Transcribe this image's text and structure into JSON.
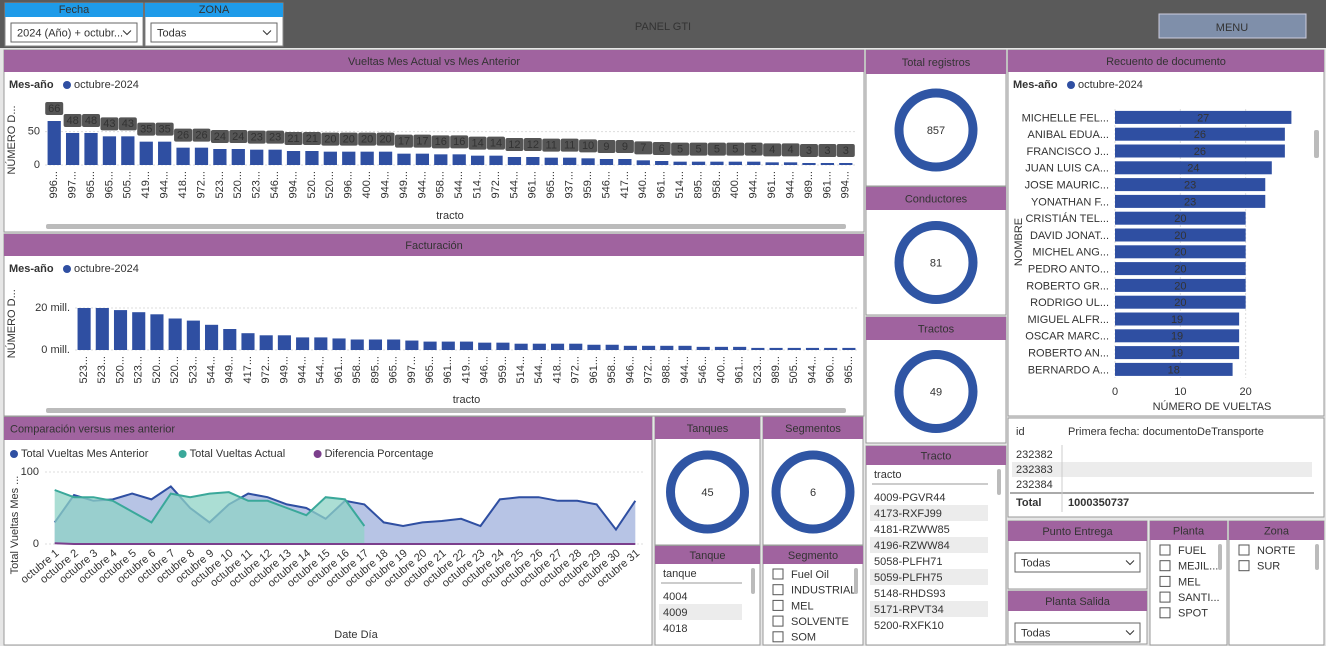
{
  "header": {
    "title": "PANEL GTI",
    "menu": "MENU"
  },
  "filters": {
    "fecha": {
      "label": "Fecha",
      "value": "2024 (Año) + octubr..."
    },
    "zona": {
      "label": "ZONA",
      "value": "Todas"
    }
  },
  "chart_data": [
    {
      "type": "bar",
      "title": "Vueltas Mes Actual vs Mes Anterior",
      "legend_title": "Mes-año",
      "y_label": "NÚMERO D...",
      "x_label": "tracto",
      "data_labels": true,
      "categories": [
        "996...",
        "997...",
        "965...",
        "965...",
        "505...",
        "419...",
        "944...",
        "418...",
        "972...",
        "523...",
        "520...",
        "523...",
        "546...",
        "994...",
        "520...",
        "520...",
        "996...",
        "400...",
        "944...",
        "949...",
        "944...",
        "958...",
        "544...",
        "514...",
        "972...",
        "544...",
        "961...",
        "965...",
        "937...",
        "959...",
        "546...",
        "417...",
        "940...",
        "961...",
        "514...",
        "895...",
        "958...",
        "400...",
        "944...",
        "961...",
        "944...",
        "989...",
        "961...",
        "994..."
      ],
      "series": [
        {
          "name": "octubre-2024",
          "color": "#2f4fa2",
          "values": [
            66,
            48,
            48,
            43,
            43,
            35,
            35,
            26,
            26,
            24,
            24,
            23,
            23,
            21,
            21,
            20,
            20,
            20,
            20,
            17,
            17,
            16,
            16,
            14,
            14,
            12,
            12,
            11,
            11,
            10,
            9,
            9,
            7,
            6,
            5,
            5,
            5,
            5,
            5,
            4,
            4,
            3,
            3,
            3
          ]
        }
      ],
      "ylim": [
        0,
        75
      ],
      "yticks": [
        0,
        50
      ]
    },
    {
      "type": "bar",
      "title": "Facturación",
      "legend_title": "Mes-año",
      "y_label": "NÚMERO D...",
      "x_label": "tracto",
      "data_labels": false,
      "categories": [
        "523...",
        "523...",
        "520...",
        "523...",
        "520...",
        "520...",
        "523...",
        "544...",
        "949...",
        "417...",
        "972...",
        "949...",
        "944...",
        "544...",
        "961...",
        "958...",
        "895...",
        "965...",
        "997...",
        "965...",
        "961...",
        "419...",
        "946...",
        "959...",
        "514...",
        "544...",
        "418...",
        "972...",
        "961...",
        "958...",
        "946...",
        "972...",
        "988...",
        "944...",
        "546...",
        "400...",
        "961...",
        "523...",
        "989...",
        "505...",
        "944...",
        "960...",
        "965..."
      ],
      "series": [
        {
          "name": "octubre-2024",
          "color": "#2f4fa2",
          "values": [
            20000000,
            20000000,
            19000000,
            18000000,
            17000000,
            15000000,
            14000000,
            12000000,
            10000000,
            8000000,
            7000000,
            7000000,
            6000000,
            6000000,
            5500000,
            5000000,
            5000000,
            5000000,
            4500000,
            4000000,
            4000000,
            4000000,
            3500000,
            3500000,
            3000000,
            3000000,
            3000000,
            3000000,
            2500000,
            2500000,
            2000000,
            2000000,
            2000000,
            2000000,
            1500000,
            1500000,
            1500000,
            1000000,
            1000000,
            1000000,
            1000000,
            1000000,
            1000000
          ]
        }
      ],
      "ylim": [
        0,
        25000000
      ],
      "yticks": [
        {
          "value": 0,
          "label": "0 mill."
        },
        {
          "value": 20000000,
          "label": "20 mill."
        }
      ]
    },
    {
      "type": "line",
      "title": "Comparación versus mes anterior",
      "y_label": "Total Vueltas Mes ...",
      "x_label": "Date Día",
      "categories": [
        "octubre 1",
        "octubre 2",
        "octubre 3",
        "octubre 4",
        "octubre 5",
        "octubre 6",
        "octubre 7",
        "octubre 8",
        "octubre 9",
        "octubre 10",
        "octubre 11",
        "octubre 12",
        "octubre 13",
        "octubre 14",
        "octubre 15",
        "octubre 16",
        "octubre 17",
        "octubre 18",
        "octubre 19",
        "octubre 20",
        "octubre 21",
        "octubre 22",
        "octubre 23",
        "octubre 24",
        "octubre 25",
        "octubre 26",
        "octubre 27",
        "octubre 28",
        "octubre 29",
        "octubre 30",
        "octubre 31"
      ],
      "series": [
        {
          "name": "Total Vueltas Mes Anterior",
          "color": "#2f4fa2",
          "fill": "#9fb0dc",
          "values": [
            30,
            68,
            60,
            62,
            70,
            62,
            80,
            50,
            30,
            55,
            70,
            65,
            55,
            50,
            35,
            60,
            55,
            30,
            25,
            30,
            32,
            35,
            25,
            62,
            65,
            65,
            60,
            60,
            55,
            20,
            60
          ]
        },
        {
          "name": "Total Vueltas Actual",
          "color": "#3aa89a",
          "fill": "#8fd3c6",
          "values": [
            75,
            65,
            65,
            60,
            45,
            30,
            70,
            65,
            70,
            72,
            60,
            60,
            50,
            40,
            65,
            62,
            25,
            null,
            null,
            null,
            null,
            null,
            null,
            null,
            null,
            null,
            null,
            null,
            null,
            null,
            null
          ]
        },
        {
          "name": "Diferencia Porcentage",
          "color": "#7b3f8c",
          "values": [
            1,
            0,
            0,
            0,
            0,
            0,
            0,
            0,
            0,
            0,
            0,
            0,
            0,
            0,
            0,
            0,
            0,
            0,
            0,
            0,
            0,
            0,
            0,
            0,
            0,
            0,
            0,
            0,
            0,
            0,
            0
          ]
        }
      ],
      "ylim": [
        0,
        100
      ],
      "yticks": [
        0,
        100
      ]
    },
    {
      "type": "barh",
      "title": "Recuento de documento",
      "legend_title": "Mes-año",
      "y_label": "NOMBRE",
      "x_label": "NÚMERO DE VUELTAS",
      "categories": [
        "MICHELLE FEL...",
        "ANIBAL EDUA...",
        "FRANCISCO J...",
        "JUAN LUIS CA...",
        "JOSE MAURIC...",
        "YONATHAN F...",
        "CRISTIÁN TEL...",
        "DAVID JONAT...",
        "MICHEL ANG...",
        "PEDRO ANTO...",
        "ROBERTO GR...",
        "RODRIGO UL...",
        "MIGUEL ALFR...",
        "OSCAR MARC...",
        "ROBERTO AN...",
        "BERNARDO A..."
      ],
      "series": [
        {
          "name": "octubre-2024",
          "color": "#2f4fa2",
          "values": [
            27,
            26,
            26,
            24,
            23,
            23,
            20,
            20,
            20,
            20,
            20,
            20,
            19,
            19,
            19,
            18
          ]
        }
      ],
      "xlim": [
        0,
        30
      ],
      "xticks": [
        0,
        10,
        20
      ]
    }
  ],
  "cards": [
    {
      "title": "Total registros",
      "value": 857
    },
    {
      "title": "Conductores",
      "value": 81
    },
    {
      "title": "Tractos",
      "value": 49
    },
    {
      "title": "Tanques",
      "value": 45
    },
    {
      "title": "Segmentos",
      "value": 6
    }
  ],
  "tracto_list": {
    "title": "Tracto",
    "header": "tracto",
    "items": [
      "4009-PGVR44",
      "4173-RXFJ99",
      "4181-RZWW85",
      "4196-RZWW84",
      "5058-PLFH71",
      "5059-PLFH75",
      "5148-RHDS93",
      "5171-RPVT34",
      "5200-RXFK10"
    ]
  },
  "tanque_list": {
    "title": "Tanque",
    "header": "tanque",
    "items": [
      "4004",
      "4009",
      "4018"
    ]
  },
  "segmento_list": {
    "title": "Segmento",
    "items": [
      "Fuel Oil",
      "INDUSTRIAL",
      "MEL",
      "SOLVENTE",
      "SOM"
    ]
  },
  "table": {
    "columns": [
      "id",
      "Primera fecha: documentoDeTransporte"
    ],
    "rows": [
      "232382",
      "232383",
      "232384"
    ],
    "total_label": "Total",
    "total": "1000350737"
  },
  "punto_entrega": {
    "title": "Punto Entrega",
    "value": "Todas"
  },
  "planta_salida": {
    "title": "Planta Salida",
    "value": "Todas"
  },
  "planta": {
    "title": "Planta",
    "items": [
      "FUEL",
      "MEJIL...",
      "MEL",
      "SANTI...",
      "SPOT"
    ]
  },
  "zona": {
    "title": "Zona",
    "items": [
      "NORTE",
      "SUR"
    ]
  }
}
